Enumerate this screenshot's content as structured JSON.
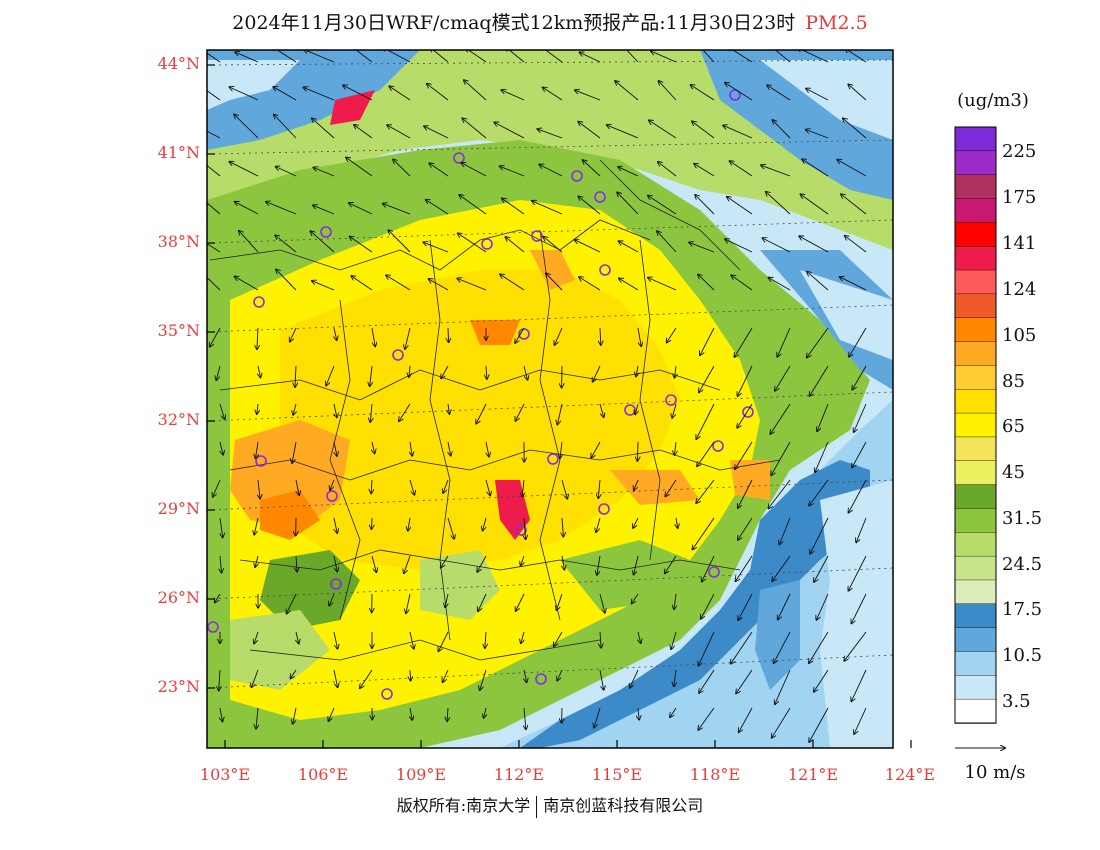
{
  "title": "2024年11月30日WRF/cmaq模式12km预报产品:11月30日23时",
  "pollutant": "PM2.5",
  "lat_labels": [
    "44°N",
    "41°N",
    "38°N",
    "35°N",
    "32°N",
    "29°N",
    "26°N",
    "23°N"
  ],
  "lon_labels": [
    "103°E",
    "106°E",
    "109°E",
    "112°E",
    "115°E",
    "118°E",
    "121°E",
    "124°E"
  ],
  "colorbar": {
    "units": "(ug/m3)",
    "labels": [
      "225",
      "175",
      "141",
      "124",
      "105",
      "85",
      "65",
      "45",
      "31.5",
      "24.5",
      "17.5",
      "10.5",
      "3.5"
    ],
    "colors": [
      "#7f2bd9",
      "#9a2cc8",
      "#b03060",
      "#c81870",
      "#ff0000",
      "#ee1c4a",
      "#ff5a5a",
      "#ee5a2a",
      "#ff8800",
      "#ffaa22",
      "#ffcc33",
      "#ffe000",
      "#fff200",
      "#f4e45a",
      "#eaf060",
      "#6aa82a",
      "#8cc63f",
      "#b8dc6a",
      "#c8e48a",
      "#dcecb8",
      "#3d8ac8",
      "#60a8dc",
      "#a0d4f0",
      "#c8e8f8",
      "#ffffff"
    ]
  },
  "wind_scale_label": "10 m/s",
  "copyright": {
    "left": "版权所有:南京大学",
    "right": "南京创蓝科技有限公司"
  }
}
